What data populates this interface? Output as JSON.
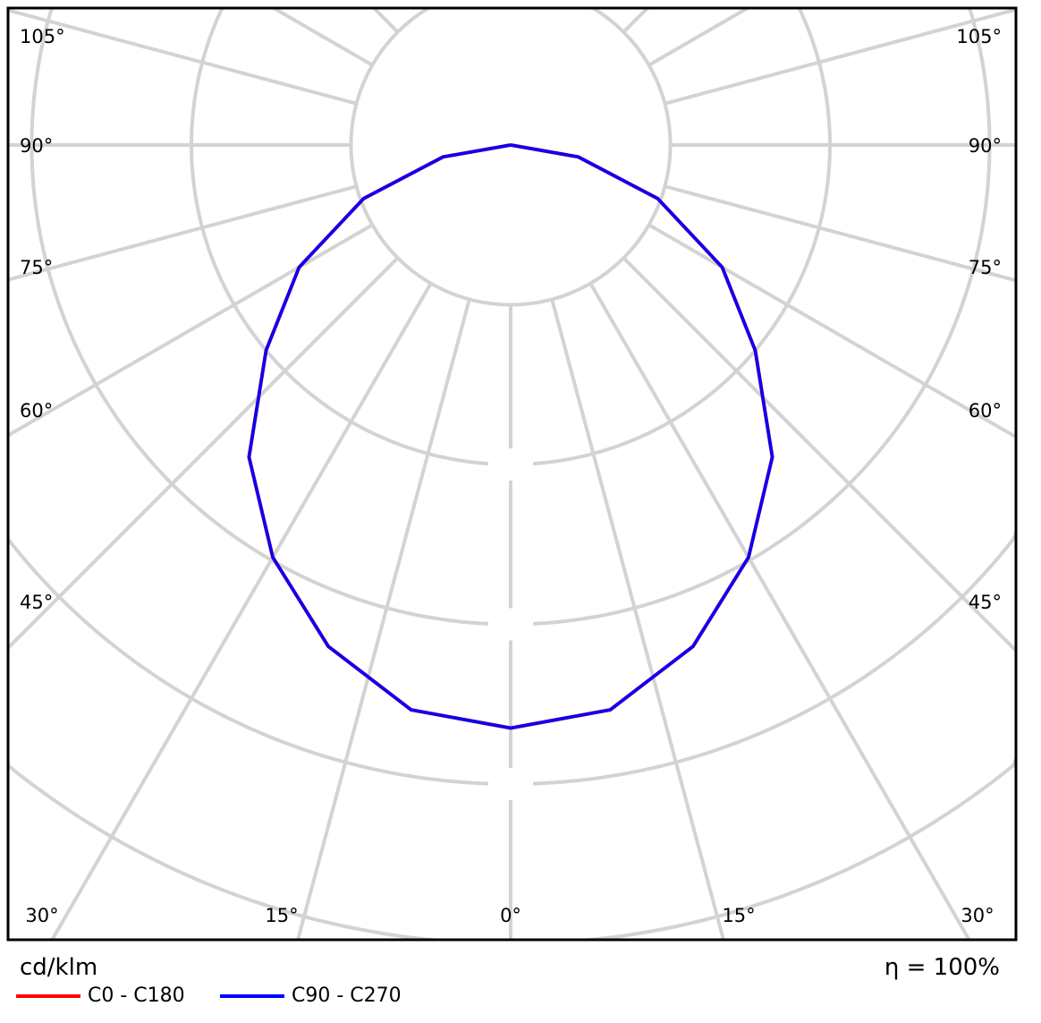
{
  "chart_data": {
    "type": "polar",
    "unit_label": "cd/klm",
    "efficiency_label": "η = 100%",
    "angle_labels_left": [
      "105°",
      "90°",
      "75°",
      "60°",
      "45°"
    ],
    "angle_labels_right": [
      "105°",
      "90°",
      "75°",
      "60°",
      "45°"
    ],
    "angle_labels_bottom": [
      "30°",
      "15°",
      "0°",
      "15°",
      "30°"
    ],
    "angles_deg": [
      0,
      10,
      20,
      30,
      40,
      50,
      60,
      70,
      80,
      90
    ],
    "series": [
      {
        "name": "C0 - C180",
        "color": "#ff0000",
        "values": [
          365,
          359,
          334,
          298,
          255,
          200,
          153,
          98,
          43,
          0
        ]
      },
      {
        "name": "C90 - C270",
        "color": "#0000ff",
        "values": [
          365,
          359,
          334,
          298,
          255,
          200,
          153,
          98,
          43,
          0
        ]
      }
    ],
    "ring_step": 100,
    "grid": true
  }
}
